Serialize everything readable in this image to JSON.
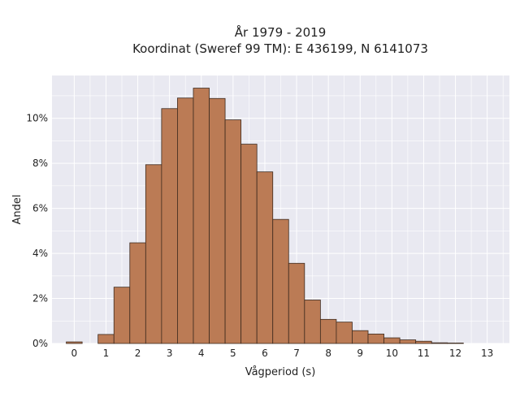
{
  "chart_data": {
    "type": "bar",
    "title_lines": [
      "År 1979 - 2019",
      "Koordinat (Sweref 99 TM): E 436199, N 6141073"
    ],
    "xlabel": "Vågperiod (s)",
    "ylabel": "Andel",
    "bin_width": 0.5,
    "bins": [
      {
        "x": 0.0,
        "value": 0.0007
      },
      {
        "x": 0.5,
        "value": 0.0
      },
      {
        "x": 1.0,
        "value": 0.004
      },
      {
        "x": 1.5,
        "value": 0.025
      },
      {
        "x": 2.0,
        "value": 0.0447
      },
      {
        "x": 2.5,
        "value": 0.0794
      },
      {
        "x": 3.0,
        "value": 0.1043
      },
      {
        "x": 3.5,
        "value": 0.109
      },
      {
        "x": 4.0,
        "value": 0.1134
      },
      {
        "x": 4.5,
        "value": 0.1088
      },
      {
        "x": 5.0,
        "value": 0.0993
      },
      {
        "x": 5.5,
        "value": 0.0885
      },
      {
        "x": 6.0,
        "value": 0.0762
      },
      {
        "x": 6.5,
        "value": 0.0551
      },
      {
        "x": 7.0,
        "value": 0.0356
      },
      {
        "x": 7.5,
        "value": 0.0193
      },
      {
        "x": 8.0,
        "value": 0.0107
      },
      {
        "x": 8.5,
        "value": 0.0095
      },
      {
        "x": 9.0,
        "value": 0.0057
      },
      {
        "x": 9.5,
        "value": 0.0042
      },
      {
        "x": 10.0,
        "value": 0.0025
      },
      {
        "x": 10.5,
        "value": 0.0016
      },
      {
        "x": 11.0,
        "value": 0.001
      },
      {
        "x": 11.5,
        "value": 0.0003
      },
      {
        "x": 12.0,
        "value": 0.0002
      }
    ],
    "xlim": [
      -0.7,
      13.7
    ],
    "ylim": [
      0,
      0.119
    ],
    "x_ticks": [
      0,
      1,
      2,
      3,
      4,
      5,
      6,
      7,
      8,
      9,
      10,
      11,
      12,
      13
    ],
    "x_tick_labels": [
      "0",
      "1",
      "2",
      "3",
      "4",
      "5",
      "6",
      "7",
      "8",
      "9",
      "10",
      "11",
      "12",
      "13"
    ],
    "y_ticks": [
      0,
      0.02,
      0.04,
      0.06,
      0.08,
      0.1
    ],
    "y_tick_labels": [
      "0%",
      "2%",
      "4%",
      "6%",
      "8%",
      "10%"
    ],
    "grid": true,
    "legend": "none",
    "colors": {
      "bar_fill": "#bb7b55",
      "bar_edge": "#3d2a1e",
      "plot_background": "#e9e9f1",
      "grid": "#ffffff",
      "text": "#222222"
    }
  }
}
